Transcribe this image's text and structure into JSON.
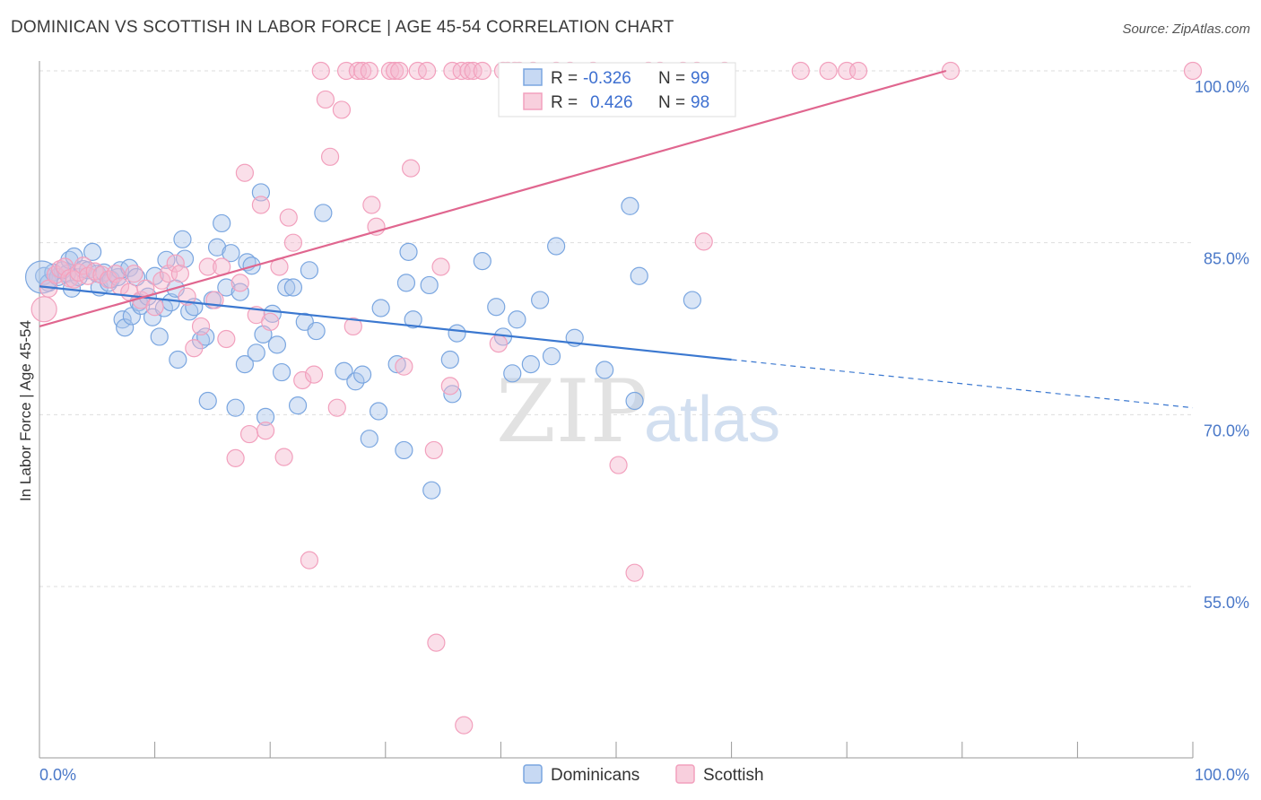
{
  "title": "DOMINICAN VS SCOTTISH IN LABOR FORCE | AGE 45-54 CORRELATION CHART",
  "source": "Source: ZipAtlas.com",
  "watermark": {
    "part1": "ZIP",
    "part2": "atlas"
  },
  "colors": {
    "blue": "#7aa6e0",
    "blue_line": "#3b78d0",
    "pink": "#f2a0bd",
    "pink_line": "#e0668f",
    "grid": "#dddddd",
    "tick": "#4a78c8"
  },
  "chart_data": {
    "type": "scatter",
    "title": "DOMINICAN VS SCOTTISH IN LABOR FORCE | AGE 45-54 CORRELATION CHART",
    "xlabel": "",
    "ylabel": "In Labor Force | Age 45-54",
    "xlim": [
      0,
      100
    ],
    "ylim": [
      40,
      102
    ],
    "x_tick_labels": [
      {
        "value": 0,
        "label": "0.0%"
      },
      {
        "value": 100,
        "label": "100.0%"
      }
    ],
    "y_tick_labels": [
      {
        "value": 55,
        "label": "55.0%"
      },
      {
        "value": 70,
        "label": "70.0%"
      },
      {
        "value": 85,
        "label": "85.0%"
      },
      {
        "value": 100,
        "label": "100.0%"
      }
    ],
    "legend": [
      {
        "name": "Dominicans",
        "r_label": "R =",
        "r": "-0.326",
        "n_label": "N =",
        "n": "99"
      },
      {
        "name": "Scottish",
        "r_label": "R =",
        "r": "0.426",
        "n_label": "N =",
        "n": "98"
      }
    ],
    "series": [
      {
        "name": "Dominicans",
        "trend": {
          "x0": 0,
          "y0": 81.2,
          "x1": 60,
          "y1": 74.8,
          "dash_to_x": 100,
          "dash_to_y": 70.6
        },
        "points": [
          [
            0.4,
            82.1
          ],
          [
            0.8,
            81.5
          ],
          [
            1.2,
            82.4
          ],
          [
            1.6,
            82.0
          ],
          [
            2.0,
            82.6
          ],
          [
            2.4,
            82.3
          ],
          [
            2.6,
            83.5
          ],
          [
            2.8,
            81.0
          ],
          [
            3.0,
            83.8
          ],
          [
            3.4,
            82.0
          ],
          [
            3.8,
            82.7
          ],
          [
            4.2,
            82.6
          ],
          [
            4.6,
            84.2
          ],
          [
            5.0,
            82.3
          ],
          [
            5.2,
            81.1
          ],
          [
            5.6,
            82.4
          ],
          [
            6.0,
            81.5
          ],
          [
            6.2,
            81.8
          ],
          [
            6.8,
            82.0
          ],
          [
            7.0,
            82.6
          ],
          [
            7.2,
            78.3
          ],
          [
            7.4,
            77.6
          ],
          [
            7.8,
            82.8
          ],
          [
            8.0,
            78.6
          ],
          [
            8.4,
            82.0
          ],
          [
            8.6,
            79.8
          ],
          [
            8.8,
            79.5
          ],
          [
            9.4,
            80.3
          ],
          [
            9.8,
            78.5
          ],
          [
            10.0,
            82.1
          ],
          [
            10.4,
            76.8
          ],
          [
            10.8,
            79.3
          ],
          [
            11.0,
            83.5
          ],
          [
            11.4,
            79.8
          ],
          [
            11.8,
            81.0
          ],
          [
            12.0,
            74.8
          ],
          [
            12.4,
            85.3
          ],
          [
            12.6,
            83.6
          ],
          [
            13.0,
            79.0
          ],
          [
            13.4,
            79.4
          ],
          [
            14.0,
            76.5
          ],
          [
            14.4,
            76.8
          ],
          [
            14.6,
            71.2
          ],
          [
            15.0,
            80.0
          ],
          [
            15.4,
            84.6
          ],
          [
            15.8,
            86.7
          ],
          [
            16.2,
            81.1
          ],
          [
            16.6,
            84.1
          ],
          [
            17.0,
            70.6
          ],
          [
            17.4,
            80.7
          ],
          [
            17.8,
            74.4
          ],
          [
            18.0,
            83.3
          ],
          [
            18.4,
            83.0
          ],
          [
            18.8,
            75.4
          ],
          [
            19.2,
            89.4
          ],
          [
            19.4,
            77.0
          ],
          [
            19.6,
            69.8
          ],
          [
            20.2,
            78.8
          ],
          [
            20.6,
            76.1
          ],
          [
            21.0,
            73.7
          ],
          [
            21.4,
            81.1
          ],
          [
            22.0,
            81.1
          ],
          [
            22.4,
            70.8
          ],
          [
            23.0,
            78.1
          ],
          [
            23.4,
            82.6
          ],
          [
            24.0,
            77.3
          ],
          [
            24.6,
            87.6
          ],
          [
            26.4,
            73.8
          ],
          [
            27.4,
            72.9
          ],
          [
            28.0,
            73.5
          ],
          [
            28.6,
            67.9
          ],
          [
            29.4,
            70.3
          ],
          [
            29.6,
            79.3
          ],
          [
            31.0,
            74.4
          ],
          [
            31.6,
            66.9
          ],
          [
            31.8,
            81.5
          ],
          [
            32.0,
            84.2
          ],
          [
            32.4,
            78.3
          ],
          [
            33.8,
            81.3
          ],
          [
            34.0,
            63.4
          ],
          [
            35.6,
            74.8
          ],
          [
            35.8,
            71.8
          ],
          [
            36.2,
            77.1
          ],
          [
            38.4,
            83.4
          ],
          [
            39.6,
            79.4
          ],
          [
            40.2,
            76.8
          ],
          [
            41.0,
            73.6
          ],
          [
            41.4,
            78.3
          ],
          [
            42.6,
            74.4
          ],
          [
            43.4,
            80.0
          ],
          [
            44.4,
            75.1
          ],
          [
            44.8,
            84.7
          ],
          [
            46.4,
            76.7
          ],
          [
            49.0,
            73.9
          ],
          [
            51.2,
            88.2
          ],
          [
            51.6,
            71.2
          ],
          [
            52.0,
            82.1
          ],
          [
            56.6,
            80.0
          ],
          [
            0.2,
            82.0
          ]
        ]
      },
      {
        "name": "Scottish",
        "trend": {
          "x0": 0,
          "y0": 77.7,
          "x1": 78.6,
          "y1": 100.0
        },
        "points": [
          [
            0.4,
            79.2
          ],
          [
            0.8,
            81.0
          ],
          [
            1.4,
            82.2
          ],
          [
            1.8,
            82.7
          ],
          [
            2.2,
            82.9
          ],
          [
            2.6,
            81.9
          ],
          [
            3.0,
            81.8
          ],
          [
            3.4,
            82.4
          ],
          [
            3.8,
            83.0
          ],
          [
            4.2,
            82.1
          ],
          [
            4.8,
            82.5
          ],
          [
            5.4,
            82.2
          ],
          [
            6.0,
            81.8
          ],
          [
            6.6,
            82.3
          ],
          [
            7.0,
            81.2
          ],
          [
            7.8,
            80.7
          ],
          [
            8.2,
            82.3
          ],
          [
            8.8,
            80.0
          ],
          [
            9.2,
            81.0
          ],
          [
            10.0,
            79.4
          ],
          [
            10.6,
            81.7
          ],
          [
            11.2,
            82.3
          ],
          [
            11.8,
            83.2
          ],
          [
            12.2,
            82.3
          ],
          [
            12.8,
            80.3
          ],
          [
            13.4,
            75.8
          ],
          [
            14.0,
            77.7
          ],
          [
            14.6,
            82.9
          ],
          [
            15.2,
            80.0
          ],
          [
            15.8,
            82.9
          ],
          [
            16.2,
            76.6
          ],
          [
            17.0,
            66.2
          ],
          [
            17.4,
            81.5
          ],
          [
            17.8,
            91.1
          ],
          [
            18.2,
            68.3
          ],
          [
            18.8,
            78.7
          ],
          [
            19.2,
            88.3
          ],
          [
            19.6,
            68.6
          ],
          [
            20.0,
            78.1
          ],
          [
            20.8,
            82.9
          ],
          [
            21.2,
            66.3
          ],
          [
            21.6,
            87.2
          ],
          [
            22.0,
            85.0
          ],
          [
            22.8,
            73.0
          ],
          [
            23.4,
            57.3
          ],
          [
            23.8,
            73.5
          ],
          [
            24.4,
            100.0
          ],
          [
            24.8,
            97.5
          ],
          [
            25.2,
            92.5
          ],
          [
            25.8,
            70.6
          ],
          [
            26.2,
            96.6
          ],
          [
            26.6,
            100.0
          ],
          [
            27.2,
            77.7
          ],
          [
            27.6,
            100.0
          ],
          [
            28.0,
            100.0
          ],
          [
            28.6,
            100.0
          ],
          [
            28.8,
            88.3
          ],
          [
            29.2,
            86.4
          ],
          [
            30.4,
            100.0
          ],
          [
            30.8,
            100.0
          ],
          [
            31.2,
            100.0
          ],
          [
            31.6,
            74.2
          ],
          [
            32.2,
            91.5
          ],
          [
            32.8,
            100.0
          ],
          [
            33.6,
            100.0
          ],
          [
            34.2,
            66.9
          ],
          [
            34.4,
            50.1
          ],
          [
            34.8,
            82.9
          ],
          [
            35.6,
            72.5
          ],
          [
            35.8,
            100.0
          ],
          [
            36.6,
            100.0
          ],
          [
            36.8,
            42.9
          ],
          [
            37.2,
            100.0
          ],
          [
            37.6,
            100.0
          ],
          [
            38.4,
            100.0
          ],
          [
            39.8,
            76.2
          ],
          [
            40.2,
            100.0
          ],
          [
            40.6,
            100.0
          ],
          [
            41.2,
            100.0
          ],
          [
            41.6,
            100.0
          ],
          [
            42.8,
            100.0
          ],
          [
            44.8,
            100.0
          ],
          [
            46.0,
            100.0
          ],
          [
            48.0,
            100.0
          ],
          [
            50.2,
            65.6
          ],
          [
            51.6,
            56.2
          ],
          [
            52.8,
            100.0
          ],
          [
            53.8,
            100.0
          ],
          [
            55.8,
            100.0
          ],
          [
            57.0,
            100.0
          ],
          [
            57.6,
            85.1
          ],
          [
            59.4,
            100.0
          ],
          [
            66.0,
            100.0
          ],
          [
            68.4,
            100.0
          ],
          [
            70.0,
            100.0
          ],
          [
            71.0,
            100.0
          ],
          [
            79.0,
            100.0
          ],
          [
            100.0,
            100.0
          ]
        ]
      }
    ]
  },
  "bottom_legend": [
    "Dominicans",
    "Scottish"
  ]
}
